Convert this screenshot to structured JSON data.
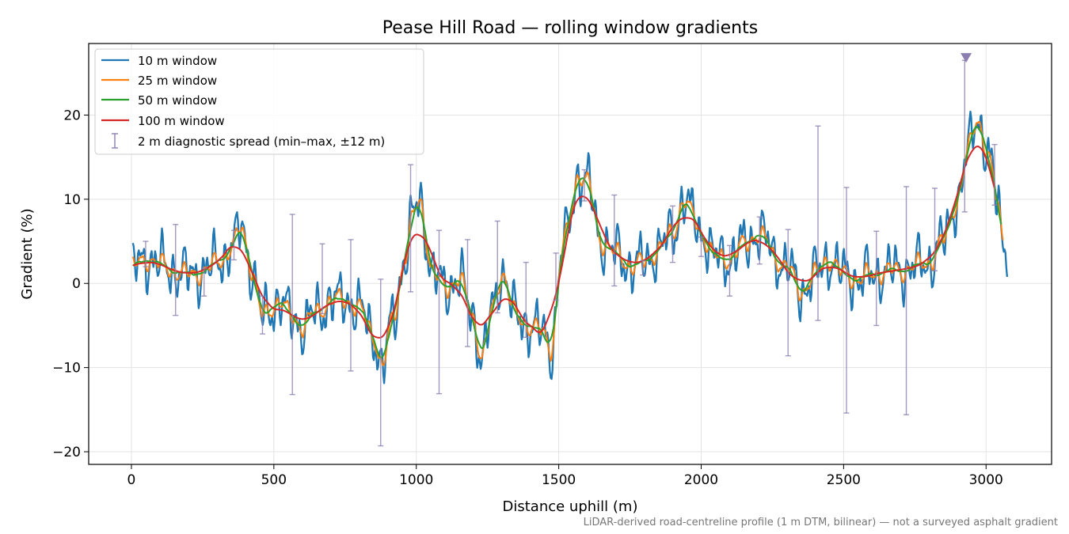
{
  "chart_data": {
    "type": "line",
    "title": "Pease Hill Road — rolling window gradients",
    "xlabel": "Distance uphill (m)",
    "ylabel": "Gradient (%)",
    "footnote": "LiDAR-derived road-centreline profile (1 m DTM, bilinear) — not a surveyed asphalt gradient",
    "xlim": [
      -150,
      3230
    ],
    "ylim": [
      -21.5,
      28.5
    ],
    "xticks": [
      0,
      500,
      1000,
      1500,
      2000,
      2500,
      3000
    ],
    "yticks": [
      -20,
      -10,
      0,
      10,
      20
    ],
    "xtick_labels": [
      "0",
      "500",
      "1000",
      "1500",
      "2000",
      "2500",
      "3000"
    ],
    "ytick_labels": [
      "−20",
      "−10",
      "0",
      "10",
      "20"
    ],
    "grid": true,
    "legend_position": "upper-left",
    "colors": {
      "w10": "#1f77b4",
      "w25": "#ff7f0e",
      "w50": "#2ca02c",
      "w100": "#d62728",
      "spread": "#8c7fb0"
    },
    "base_profile": {
      "x": [
        5,
        30,
        60,
        100,
        150,
        200,
        260,
        320,
        370,
        385,
        420,
        460,
        520,
        560,
        600,
        650,
        700,
        760,
        800,
        850,
        880,
        920,
        960,
        990,
        1010,
        1060,
        1100,
        1150,
        1200,
        1230,
        1270,
        1300,
        1350,
        1400,
        1450,
        1470,
        1520,
        1570,
        1600,
        1650,
        1700,
        1760,
        1800,
        1850,
        1900,
        1940,
        1970,
        2000,
        2050,
        2100,
        2150,
        2200,
        2230,
        2260,
        2300,
        2350,
        2400,
        2450,
        2500,
        2550,
        2600,
        2650,
        2700,
        2750,
        2800,
        2850,
        2900,
        2940,
        2970,
        3000,
        3040,
        3060
      ],
      "y": [
        1.8,
        2.5,
        3.0,
        2.2,
        1.5,
        1.0,
        1.5,
        3.0,
        5.0,
        7.0,
        2.0,
        -4.0,
        -2.0,
        -4.0,
        -5.0,
        -3.5,
        -2.0,
        -2.0,
        -3.0,
        -6.0,
        -10.0,
        -4.0,
        3.0,
        8.0,
        10.0,
        1.0,
        -0.5,
        0.5,
        -4.0,
        -9.0,
        -3.0,
        1.5,
        -4.0,
        -5.0,
        -6.0,
        -8.0,
        5.0,
        13.0,
        12.0,
        5.0,
        3.5,
        2.0,
        2.5,
        4.0,
        6.0,
        10.0,
        8.0,
        6.0,
        3.0,
        3.0,
        4.5,
        6.0,
        5.0,
        3.0,
        2.0,
        -1.0,
        1.0,
        3.0,
        1.0,
        0.5,
        1.0,
        1.5,
        1.5,
        2.0,
        2.5,
        5.0,
        10.0,
        16.0,
        20.0,
        16.0,
        10.0,
        5.0
      ]
    },
    "series": [
      {
        "name": "10 m window",
        "key": "w10",
        "x_end": 3075
      },
      {
        "name": "25 m window",
        "key": "w25",
        "x_end": 3060
      },
      {
        "name": "50 m window",
        "key": "w50",
        "x_end": 3055
      },
      {
        "name": "100 m window",
        "key": "w100",
        "x_end": 3030
      }
    ],
    "errorbars": {
      "name": "2 m diagnostic spread (min–max, ±12 m)",
      "points": [
        {
          "x": 50,
          "lo": 2.0,
          "hi": 5.0
        },
        {
          "x": 155,
          "lo": -3.8,
          "hi": 7.0
        },
        {
          "x": 255,
          "lo": -1.5,
          "hi": 1.8
        },
        {
          "x": 360,
          "lo": 2.8,
          "hi": 6.3
        },
        {
          "x": 460,
          "lo": -6.0,
          "hi": -1.5
        },
        {
          "x": 565,
          "lo": -13.2,
          "hi": 8.2
        },
        {
          "x": 670,
          "lo": -3.6,
          "hi": 4.7
        },
        {
          "x": 770,
          "lo": -10.4,
          "hi": 5.2
        },
        {
          "x": 875,
          "lo": -19.3,
          "hi": 0.5
        },
        {
          "x": 980,
          "lo": -1.0,
          "hi": 14.1
        },
        {
          "x": 1080,
          "lo": -13.1,
          "hi": 6.3
        },
        {
          "x": 1180,
          "lo": -7.5,
          "hi": 5.2
        },
        {
          "x": 1285,
          "lo": -3.5,
          "hi": 7.4
        },
        {
          "x": 1385,
          "lo": -6.4,
          "hi": 2.5
        },
        {
          "x": 1490,
          "lo": -2.0,
          "hi": 3.6
        },
        {
          "x": 1590,
          "lo": 9.8,
          "hi": 13.5
        },
        {
          "x": 1695,
          "lo": -0.3,
          "hi": 10.5
        },
        {
          "x": 1795,
          "lo": 1.0,
          "hi": 2.7
        },
        {
          "x": 1900,
          "lo": 2.5,
          "hi": 9.2
        },
        {
          "x": 2000,
          "lo": 3.2,
          "hi": 5.5
        },
        {
          "x": 2100,
          "lo": -1.5,
          "hi": 4.5
        },
        {
          "x": 2205,
          "lo": 2.3,
          "hi": 7.9
        },
        {
          "x": 2305,
          "lo": -8.6,
          "hi": 6.4
        },
        {
          "x": 2410,
          "lo": -4.4,
          "hi": 18.7
        },
        {
          "x": 2510,
          "lo": -15.4,
          "hi": 11.4
        },
        {
          "x": 2615,
          "lo": -5.0,
          "hi": 6.2
        },
        {
          "x": 2720,
          "lo": -15.6,
          "hi": 11.5
        },
        {
          "x": 2820,
          "lo": 1.5,
          "hi": 11.3
        },
        {
          "x": 2925,
          "lo": 8.5,
          "hi": 26.5
        },
        {
          "x": 3030,
          "lo": 9.3,
          "hi": 16.5
        }
      ],
      "clipped_marker_x": 2930
    }
  }
}
